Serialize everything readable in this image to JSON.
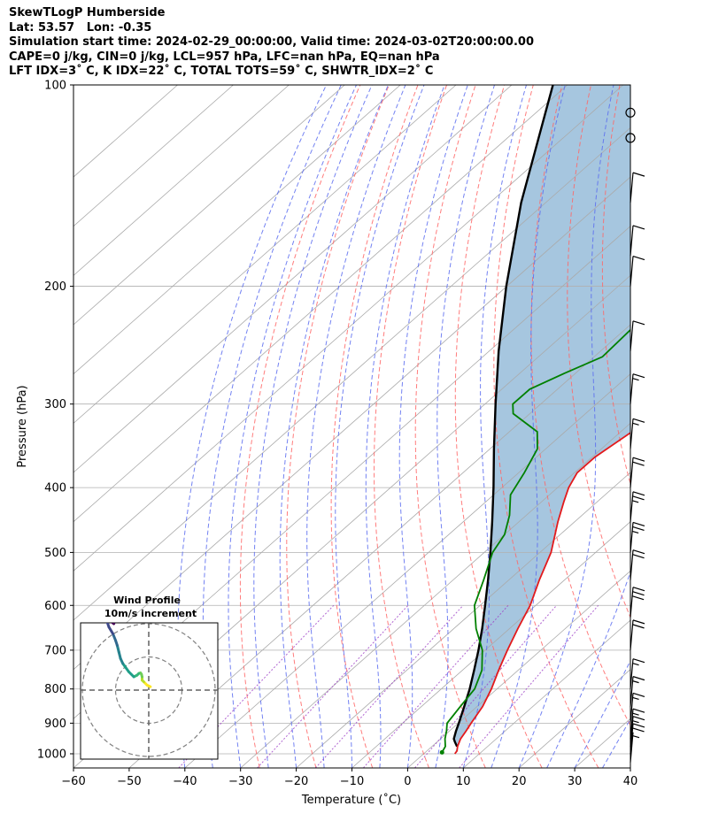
{
  "header": {
    "line1": "SkewTLogP Humberside",
    "line2": "Lat: 53.57   Lon: -0.35",
    "line3": "Simulation start time: 2024-02-29_00:00:00, Valid time: 2024-03-02T20:00:00.00",
    "line4": "CAPE=0 j/kg, CIN=0 j/kg, LCL=957 hPa, LFC=nan hPa, EQ=nan hPa",
    "line5": "LFT IDX=3˚ C, K IDX=22˚ C, TOTAL TOTS=59˚ C, SHWTR_IDX=2˚ C"
  },
  "colors": {
    "temperature": "#e31a1c",
    "dewpoint": "#008000",
    "parcel": "#000000",
    "cape_fill": "#a6c6df",
    "dry_adiabat": "#ff6666",
    "moist_adiabat": "#5a6cf0",
    "mixing_ratio": "#9c3fc6",
    "isotherm": "#aaaaaa"
  },
  "chart_data": {
    "type": "line",
    "skew": true,
    "xlabel": "Temperature (˚C)",
    "ylabel": "Pressure (hPa)",
    "xlim": [
      -60,
      40
    ],
    "ylim": [
      1050,
      100
    ],
    "yscale": "log",
    "xticks": [
      "−60",
      "−50",
      "−40",
      "−30",
      "−20",
      "−10",
      "0",
      "10",
      "20",
      "30",
      "40"
    ],
    "yticks": [
      "100",
      "200",
      "300",
      "400",
      "500",
      "600",
      "700",
      "800",
      "900",
      "1000"
    ],
    "xtick_values": [
      -60,
      -50,
      -40,
      -30,
      -20,
      -10,
      0,
      10,
      20,
      30,
      40
    ],
    "ytick_values": [
      100,
      200,
      300,
      400,
      500,
      600,
      700,
      800,
      900,
      1000
    ],
    "grid": true,
    "series": [
      {
        "role": "temperature",
        "p": [
          1000,
          990,
          975,
          950,
          925,
          900,
          850,
          800,
          750,
          700,
          650,
          600,
          550,
          500,
          450,
          420,
          400,
          380,
          360,
          330,
          300,
          280,
          250,
          220,
          200,
          180,
          160,
          140,
          120,
          110,
          100
        ],
        "t": [
          5.6,
          5.4,
          4.6,
          3.6,
          3.0,
          2.3,
          1.0,
          -1.0,
          -3.5,
          -6.0,
          -8.5,
          -11.0,
          -14.5,
          -18.0,
          -23.0,
          -26.0,
          -28.0,
          -29.5,
          -29.5,
          -28.0,
          -28.5,
          -29.0,
          -29.0,
          -29.5,
          -29.0,
          -30.0,
          -31.5,
          -34.0,
          -36.0,
          -37.0,
          -38.0
        ]
      },
      {
        "role": "dewpoint",
        "p": [
          995,
          975,
          950,
          925,
          900,
          850,
          800,
          750,
          700,
          650,
          600,
          550,
          500,
          470,
          440,
          410,
          380,
          350,
          330,
          310,
          300,
          285,
          270,
          255,
          230,
          200,
          180,
          160,
          140,
          120,
          100
        ],
        "t": [
          3.0,
          2.4,
          0.8,
          -0.5,
          -2.0,
          -3.0,
          -4.0,
          -6.5,
          -10.5,
          -16.0,
          -21.0,
          -24.5,
          -28.5,
          -30.0,
          -33.0,
          -37.0,
          -39.0,
          -41.5,
          -45.0,
          -53.0,
          -55.0,
          -55.0,
          -52.0,
          -48.5,
          -49.0,
          -48.0,
          -48.0,
          -45.0,
          -42.0,
          -38.5,
          -35.0
        ]
      },
      {
        "role": "parcel",
        "p": [
          975,
          960,
          950,
          925,
          900,
          850,
          800,
          750,
          700,
          650,
          600,
          550,
          500,
          450,
          400,
          350,
          300,
          250,
          200,
          150,
          100
        ],
        "t": [
          4.5,
          3.2,
          2.4,
          1.2,
          0.1,
          -2.3,
          -4.9,
          -7.9,
          -11.2,
          -14.9,
          -19.1,
          -23.7,
          -28.9,
          -34.8,
          -41.5,
          -49.3,
          -58.1,
          -68.3,
          -80.1,
          -94.4,
          -112.6
        ]
      }
    ],
    "wind_barbs": [
      {
        "p": 1030,
        "speed": 5
      },
      {
        "p": 1000,
        "speed": 20
      },
      {
        "p": 975,
        "speed": 15
      },
      {
        "p": 950,
        "speed": 15
      },
      {
        "p": 900,
        "speed": 15
      },
      {
        "p": 850,
        "speed": 15
      },
      {
        "p": 800,
        "speed": 15
      },
      {
        "p": 700,
        "speed": 20
      },
      {
        "p": 625,
        "speed": 30
      },
      {
        "p": 550,
        "speed": 20
      },
      {
        "p": 500,
        "speed": 25
      },
      {
        "p": 450,
        "speed": 25
      },
      {
        "p": 400,
        "speed": 20
      },
      {
        "p": 350,
        "speed": 15
      },
      {
        "p": 300,
        "speed": 15
      },
      {
        "p": 250,
        "speed": 10
      },
      {
        "p": 200,
        "speed": 10
      },
      {
        "p": 180,
        "speed": 10
      },
      {
        "p": 150,
        "speed": 10
      },
      {
        "p": 120,
        "speed": 0
      },
      {
        "p": 110,
        "speed": 0
      }
    ],
    "hodograph": {
      "title": "Wind Profile",
      "subtitle": "10m/s increment",
      "ring_increment": 10,
      "u": [
        0.5,
        -0.5,
        -1.2,
        -1.5,
        -2.0,
        -2.0,
        -2.2,
        -2.5,
        -3.0,
        -3.5,
        -4.5,
        -6.0,
        -7.8,
        -8.5,
        -9.0,
        -9.5,
        -10.0,
        -10.8,
        -12.0,
        -12.5,
        -13.0,
        -13.2,
        -12.5,
        -11.8,
        -10.5
      ],
      "v": [
        1.0,
        1.5,
        2.2,
        2.5,
        3.0,
        4.0,
        4.8,
        5.2,
        5.0,
        4.5,
        4.0,
        5.5,
        8.0,
        9.5,
        11.5,
        13.5,
        15.0,
        17.0,
        19.0,
        20.5,
        21.5,
        22.0,
        21.8,
        21.0,
        20.0
      ]
    }
  }
}
